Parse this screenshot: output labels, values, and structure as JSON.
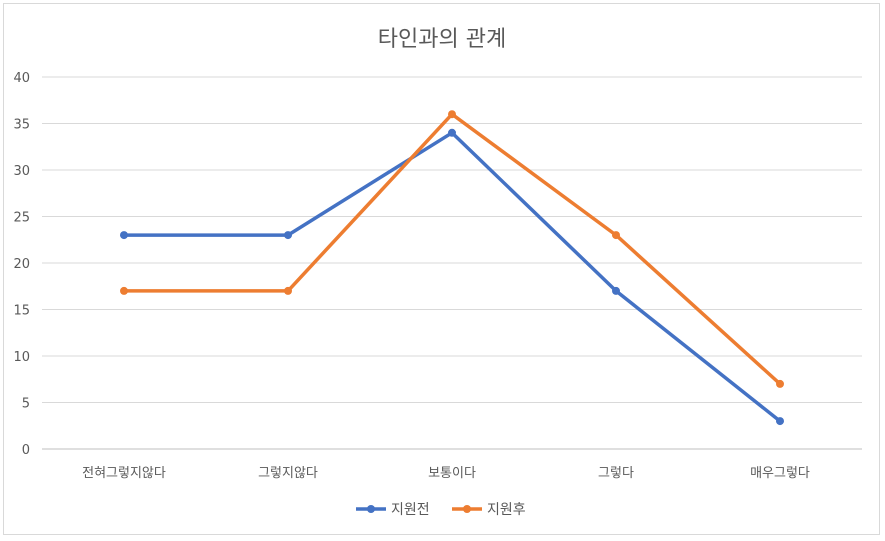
{
  "chart_data": {
    "type": "line",
    "title": "타인과의 관계",
    "categories": [
      "전혀그렇지않다",
      "그렇지않다",
      "보통이다",
      "그렇다",
      "매우그렇다"
    ],
    "series": [
      {
        "name": "지원전",
        "values": [
          23,
          23,
          34,
          17,
          3
        ],
        "color": "#4472c4"
      },
      {
        "name": "지원후",
        "values": [
          17,
          17,
          36,
          23,
          7
        ],
        "color": "#ed7d31"
      }
    ],
    "ylim": [
      0,
      40
    ],
    "yticks": [
      0,
      5,
      10,
      15,
      20,
      25,
      30,
      35,
      40
    ],
    "grid": true,
    "legend": "bottom"
  }
}
